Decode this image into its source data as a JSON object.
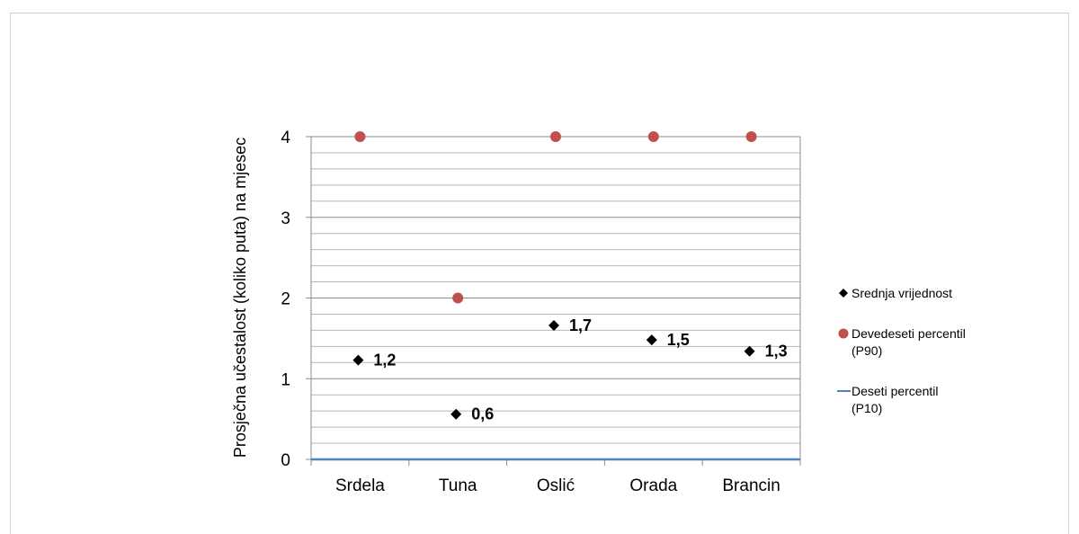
{
  "chart_data": {
    "type": "scatter",
    "categories": [
      "Srdela",
      "Tuna",
      "Oslić",
      "Orada",
      "Brancin"
    ],
    "ylabel": "Prosječna učestalost (koliko puta) na mjesec",
    "ylim": [
      0,
      4
    ],
    "y_ticks": [
      "0",
      "1",
      "2",
      "3",
      "4"
    ],
    "minor_grid": true,
    "legend_position": "right",
    "series": [
      {
        "name": "Srednja vrijednost",
        "marker": "diamond",
        "color": "#000000",
        "values": [
          1.23,
          0.56,
          1.66,
          1.48,
          1.34
        ],
        "labels": [
          "1,2",
          "0,6",
          "1,7",
          "1,5",
          "1,3"
        ]
      },
      {
        "name": "Devedeseti percentil (P90)",
        "legend_lines": [
          "Devedeseti percentil",
          "(P90)"
        ],
        "marker": "circle",
        "color": "#c0504d",
        "values": [
          4,
          2,
          4,
          4,
          4
        ]
      },
      {
        "name": "Deseti percentil (P10)",
        "legend_lines": [
          "Deseti percentil",
          "(P10)"
        ],
        "marker": "line",
        "color": "#4f81bd",
        "values": [
          0,
          0,
          0,
          0,
          0
        ]
      }
    ]
  }
}
